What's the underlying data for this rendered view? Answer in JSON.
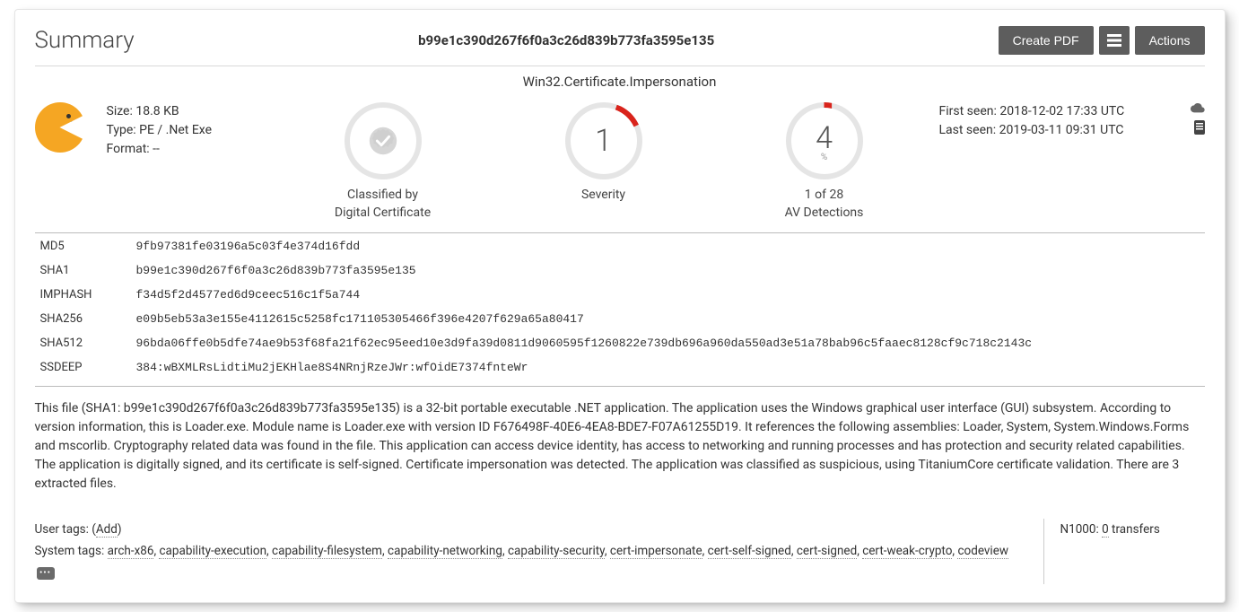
{
  "header": {
    "title": "Summary",
    "hash": "b99e1c390d267f6f0a3c26d839b773fa3595e135",
    "create_pdf": "Create PDF",
    "actions": "Actions"
  },
  "classification": "Win32.Certificate.Impersonation",
  "file": {
    "size_label": "Size:",
    "size_value": "18.8 KB",
    "type_label": "Type:",
    "type_value": "PE / .Net Exe",
    "format_label": "Format:",
    "format_value": "--"
  },
  "metrics": {
    "classified_by_line1": "Classified by",
    "classified_by_line2": "Digital Certificate",
    "severity_value": "1",
    "severity_label": "Severity",
    "av_value": "4",
    "av_pct": "%",
    "av_line1": "1 of 28",
    "av_line2": "AV Detections",
    "severity_arc_color": "#d9231b",
    "circle_bg": "#e5e5e5"
  },
  "seen": {
    "first_label": "First seen:",
    "first_value": "2018-12-02 17:33 UTC",
    "last_label": "Last seen:",
    "last_value": "2019-03-11 09:31 UTC"
  },
  "hashes": {
    "md5_label": "MD5",
    "md5": "9fb97381fe03196a5c03f4e374d16fdd",
    "sha1_label": "SHA1",
    "sha1": "b99e1c390d267f6f0a3c26d839b773fa3595e135",
    "imphash_label": "IMPHASH",
    "imphash": "f34d5f2d4577ed6d9ceec516c1f5a744",
    "sha256_label": "SHA256",
    "sha256": "e09b5eb53a3e155e4112615c5258fc171105305466f396e4207f629a65a80417",
    "sha512_label": "SHA512",
    "sha512": "96bda06ffe0b5dfe74ae9b53f68fa21f62ec95eed10e3d9fa39d0811d9060595f1260822e739db696a960da550ad3e51a78bab96c5faaec8128cf9c718c2143c",
    "ssdeep_label": "SSDEEP",
    "ssdeep": "384:wBXMLRsLidtiMu2jEKHlae8S4NRnjRzeJWr:wfOidE7374fnteWr"
  },
  "description": "This file (SHA1: b99e1c390d267f6f0a3c26d839b773fa3595e135) is a 32-bit portable executable .NET application. The application uses the Windows graphical user interface (GUI) subsystem. According to version information, this is Loader.exe. Module name is Loader.exe with version ID F676498F-40E6-4EA8-BDE7-F07A61255D19. It references the following assemblies: Loader, System, System.Windows.Forms and mscorlib. Cryptography related data was found in the file. This application can access device identity, has access to networking and running processes and has protection and security related capabilities. The application is digitally signed, and its certificate is self-signed. Certificate impersonation was detected. The application was classified as suspicious, using TitaniumCore certificate validation. There are 3 extracted files.",
  "tags": {
    "user_label": "User tags: (",
    "user_add": "Add",
    "user_close": ")",
    "system_label": "System tags: ",
    "items": [
      "arch-x86",
      "capability-execution",
      "capability-filesystem",
      "capability-networking",
      "capability-security",
      "cert-impersonate",
      "cert-self-signed",
      "cert-signed",
      "cert-weak-crypto",
      "codeview"
    ]
  },
  "transfers": {
    "prefix": "N1000: ",
    "count": "0",
    "suffix": " transfers"
  },
  "colors": {
    "accent_orange": "#f5a623",
    "text": "#333333",
    "border": "#d8d8d8",
    "btn_bg": "#5d5d5d"
  }
}
